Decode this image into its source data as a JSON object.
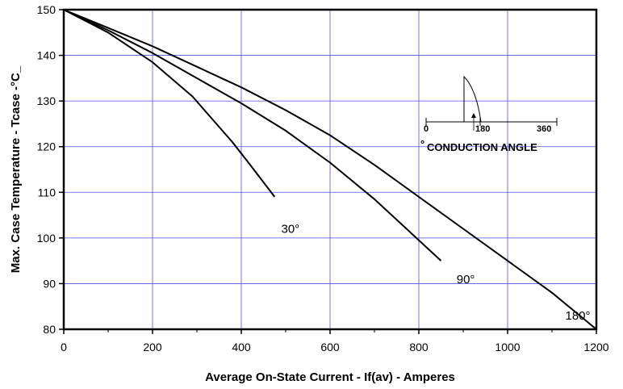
{
  "chart_data": {
    "type": "line",
    "xlabel": "Average On-State Current - If(av) - Amperes",
    "ylabel": "Max. Case Temperature - Tcase -°C_",
    "xlim": [
      0,
      1200
    ],
    "ylim": [
      80,
      150
    ],
    "xticks": [
      0,
      200,
      400,
      600,
      800,
      1000,
      1200
    ],
    "yticks": [
      80,
      90,
      100,
      110,
      120,
      130,
      140,
      150
    ],
    "grid": true,
    "series": [
      {
        "name": "30°",
        "label_pos": [
          490,
          102
        ],
        "x": [
          0,
          100,
          200,
          290,
          380,
          420,
          475
        ],
        "y": [
          150,
          145,
          138.5,
          131,
          121,
          116,
          109
        ]
      },
      {
        "name": "90°",
        "label_pos": [
          885,
          91
        ],
        "x": [
          0,
          100,
          200,
          300,
          400,
          500,
          600,
          700,
          850
        ],
        "y": [
          150,
          145.5,
          140.5,
          135,
          129.5,
          123.5,
          116.5,
          108.5,
          95
        ]
      },
      {
        "name": "180°",
        "label_pos": [
          1130,
          83
        ],
        "x": [
          0,
          100,
          200,
          300,
          400,
          500,
          600,
          700,
          800,
          900,
          1000,
          1100,
          1200
        ],
        "y": [
          150,
          146,
          142,
          137.5,
          133,
          128,
          122.5,
          116,
          109,
          102,
          95,
          88,
          80
        ]
      }
    ],
    "inset": {
      "title": "CONDUCTION ANGLE",
      "degree_mark": "°",
      "tick_labels": [
        "0",
        "180",
        "360"
      ]
    }
  }
}
